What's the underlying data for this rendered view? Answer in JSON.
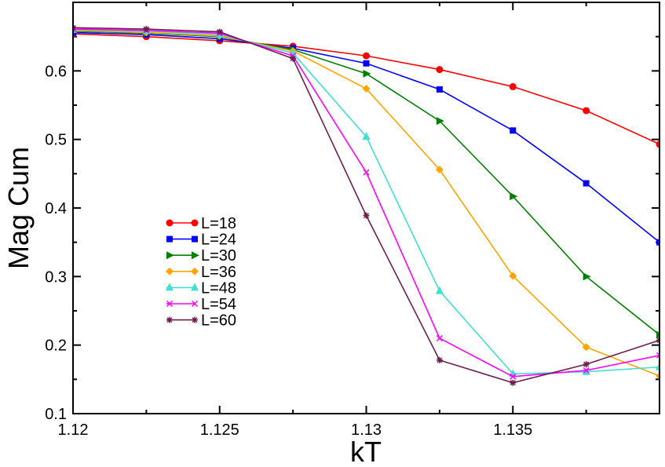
{
  "chart_data": {
    "type": "line",
    "title": "",
    "xlabel": "kT",
    "ylabel": "Mag Cum",
    "xlim": [
      1.12,
      1.14
    ],
    "ylim": [
      0.1,
      0.7
    ],
    "x_ticks": [
      {
        "value": 1.12,
        "label": "1.12"
      },
      {
        "value": 1.125,
        "label": "1.125"
      },
      {
        "value": 1.13,
        "label": "1.13"
      },
      {
        "value": 1.135,
        "label": "1.135"
      }
    ],
    "y_ticks": [
      {
        "value": 0.1,
        "label": "0.1"
      },
      {
        "value": 0.2,
        "label": "0.2"
      },
      {
        "value": 0.3,
        "label": "0.3"
      },
      {
        "value": 0.4,
        "label": "0.4"
      },
      {
        "value": 0.5,
        "label": "0.5"
      },
      {
        "value": 0.6,
        "label": "0.6"
      }
    ],
    "grid": false,
    "legend_position": "lower-left",
    "x": [
      1.12,
      1.1225,
      1.125,
      1.1275,
      1.13,
      1.1325,
      1.135,
      1.1375,
      1.14
    ],
    "series": [
      {
        "name": "L=18",
        "color": "#ff0000",
        "marker": "circle",
        "values": [
          0.654,
          0.65,
          0.644,
          0.636,
          0.622,
          0.602,
          0.577,
          0.542,
          0.493
        ]
      },
      {
        "name": "L=24",
        "color": "#0000ff",
        "marker": "square",
        "values": [
          0.656,
          0.653,
          0.647,
          0.633,
          0.611,
          0.573,
          0.513,
          0.436,
          0.35
        ]
      },
      {
        "name": "L=30",
        "color": "#008000",
        "marker": "triangle-right",
        "values": [
          0.658,
          0.655,
          0.65,
          0.631,
          0.596,
          0.527,
          0.417,
          0.3,
          0.215
        ]
      },
      {
        "name": "L=36",
        "color": "#ffa500",
        "marker": "diamond",
        "values": [
          0.659,
          0.656,
          0.651,
          0.629,
          0.574,
          0.456,
          0.301,
          0.197,
          0.155
        ]
      },
      {
        "name": "L=48",
        "color": "#40e0d0",
        "marker": "triangle-up",
        "values": [
          0.66,
          0.658,
          0.653,
          0.626,
          0.504,
          0.279,
          0.158,
          0.161,
          0.168
        ]
      },
      {
        "name": "L=54",
        "color": "#ff00ff",
        "marker": "x",
        "values": [
          0.661,
          0.659,
          0.655,
          0.622,
          0.452,
          0.21,
          0.154,
          0.163,
          0.185
        ]
      },
      {
        "name": "L=60",
        "color": "#6e1e4e",
        "marker": "star",
        "values": [
          0.663,
          0.661,
          0.657,
          0.618,
          0.389,
          0.178,
          0.145,
          0.172,
          0.207
        ]
      }
    ]
  }
}
